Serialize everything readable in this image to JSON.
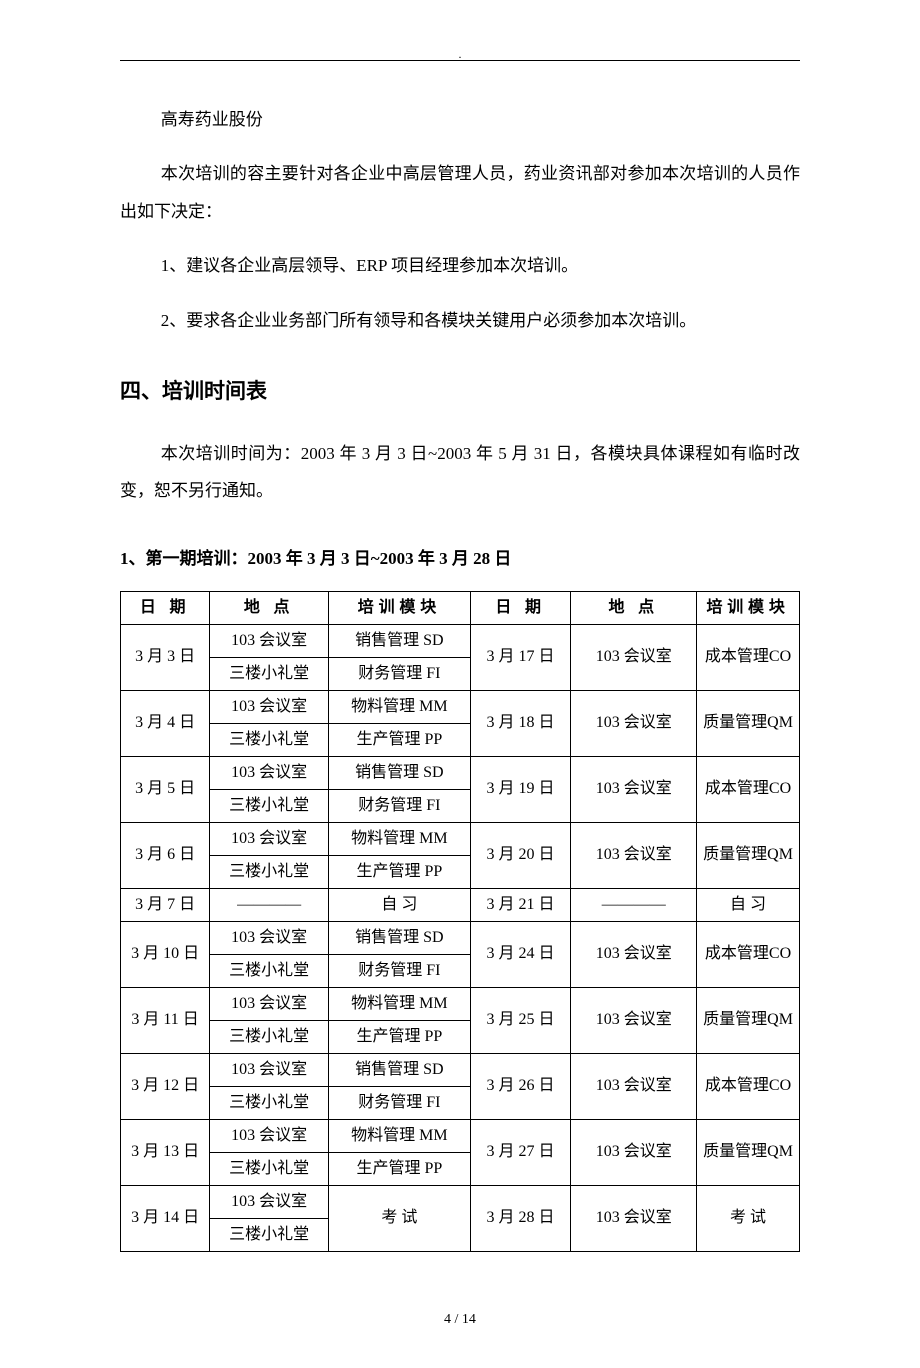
{
  "header": {
    "company": "高寿药业股份",
    "intro": "本次培训的容主要针对各企业中高层管理人员，药业资讯部对参加本次培训的人员作出如下决定：",
    "point1": "1、建议各企业高层领导、ERP 项目经理参加本次培训。",
    "point2": "2、要求各企业业务部门所有领导和各模块关键用户必须参加本次培训。"
  },
  "section4": {
    "title": "四、培训时间表",
    "desc": "本次培训时间为：2003 年 3 月 3 日~2003 年 5 月 31 日，各模块具体课程如有临时改变，恕不另行通知。",
    "sub1_title": "1、第一期培训：2003 年 3 月 3 日~2003 年 3 月 28 日"
  },
  "table": {
    "h_date": "日  期",
    "h_loc": "地  点",
    "h_mod": "培训模块",
    "loc103": "103 会议室",
    "locHall": "三楼小礼堂",
    "dash": "————",
    "study": "自  习",
    "exam": "考  试",
    "mSD": "销售管理 SD",
    "mFI": "财务管理 FI",
    "mMM": "物料管理 MM",
    "mPP": "生产管理 PP",
    "mCO": "成本管理CO",
    "mQM": "质量管理QM",
    "d": {
      "m3d3": "3 月 3 日",
      "m3d4": "3 月 4 日",
      "m3d5": "3 月 5 日",
      "m3d6": "3 月 6 日",
      "m3d7": "3 月 7 日",
      "m3d10": "3 月 10 日",
      "m3d11": "3 月 11 日",
      "m3d12": "3 月 12 日",
      "m3d13": "3 月 13 日",
      "m3d14": "3 月 14 日",
      "m3d17": "3 月 17 日",
      "m3d18": "3 月 18 日",
      "m3d19": "3 月 19 日",
      "m3d20": "3 月 20 日",
      "m3d21": "3 月 21 日",
      "m3d24": "3 月 24 日",
      "m3d25": "3 月 25 日",
      "m3d26": "3 月 26 日",
      "m3d27": "3 月 27 日",
      "m3d28": "3 月 28 日"
    }
  },
  "footer": {
    "page": "4 / 14"
  }
}
